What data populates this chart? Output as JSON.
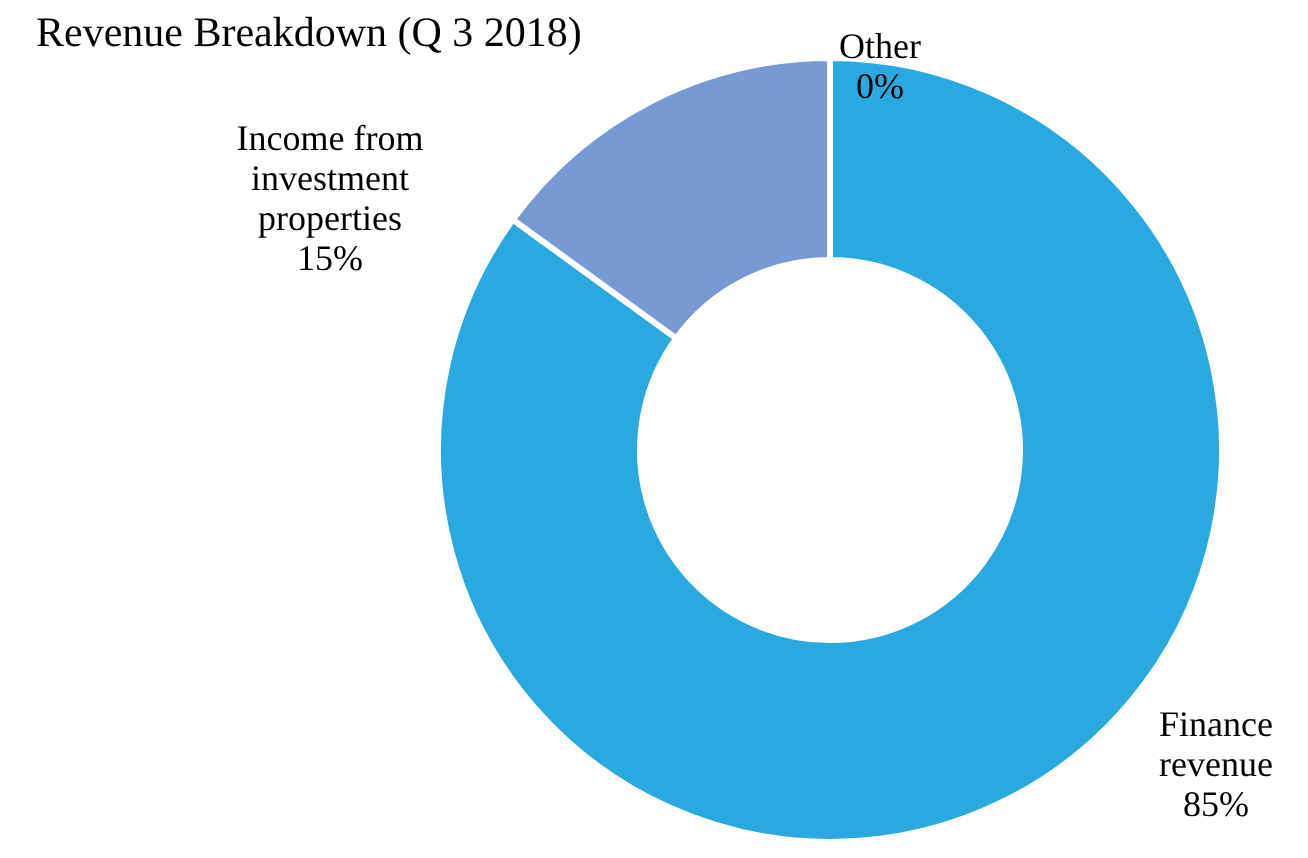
{
  "chart_data": {
    "type": "donut",
    "title": "Revenue Breakdown (Q 3 2018)",
    "categories": [
      "Finance revenue",
      "Income from investment properties",
      "Other"
    ],
    "values": [
      85,
      15,
      0
    ],
    "value_labels": [
      "85%",
      "15%",
      "0%"
    ],
    "colors": [
      "#29a9e0",
      "#7799d4",
      "#cfdcee"
    ]
  }
}
